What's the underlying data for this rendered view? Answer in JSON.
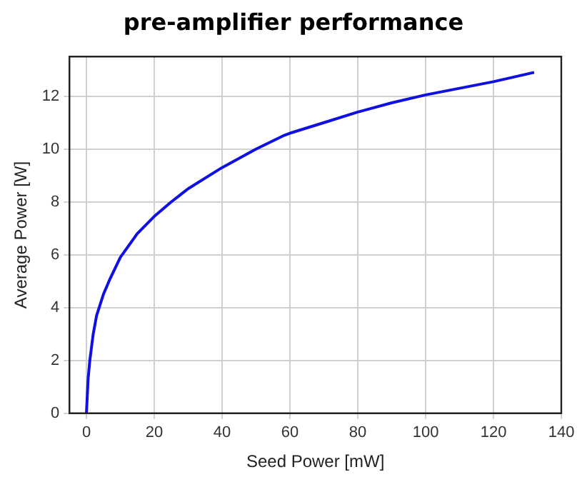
{
  "chart_data": {
    "type": "line",
    "title": "pre-amplifier performance",
    "xlabel": "Seed Power [mW]",
    "ylabel": "Average Power [W]",
    "x": [
      0,
      0.5,
      1,
      2,
      3,
      5,
      7,
      10,
      15,
      20,
      25,
      30,
      40,
      50,
      58,
      60,
      70,
      80,
      90,
      100,
      110,
      120,
      132
    ],
    "series": [
      {
        "color": "#1010e0",
        "values": [
          0,
          1.3,
          2,
          3,
          3.7,
          4.5,
          5.1,
          5.9,
          6.8,
          7.45,
          8.0,
          8.5,
          9.3,
          10,
          10.5,
          10.6,
          11,
          11.4,
          11.75,
          12.05,
          12.3,
          12.55,
          12.9
        ]
      }
    ],
    "xlim": [
      -5,
      140
    ],
    "xticks": [
      0,
      20,
      40,
      60,
      80,
      100,
      120,
      140
    ],
    "ylim": [
      0,
      13.5
    ],
    "yticks": [
      0,
      2,
      4,
      6,
      8,
      10,
      12
    ],
    "grid": true,
    "marker": "none",
    "line_style": "solid",
    "legend": false
  }
}
